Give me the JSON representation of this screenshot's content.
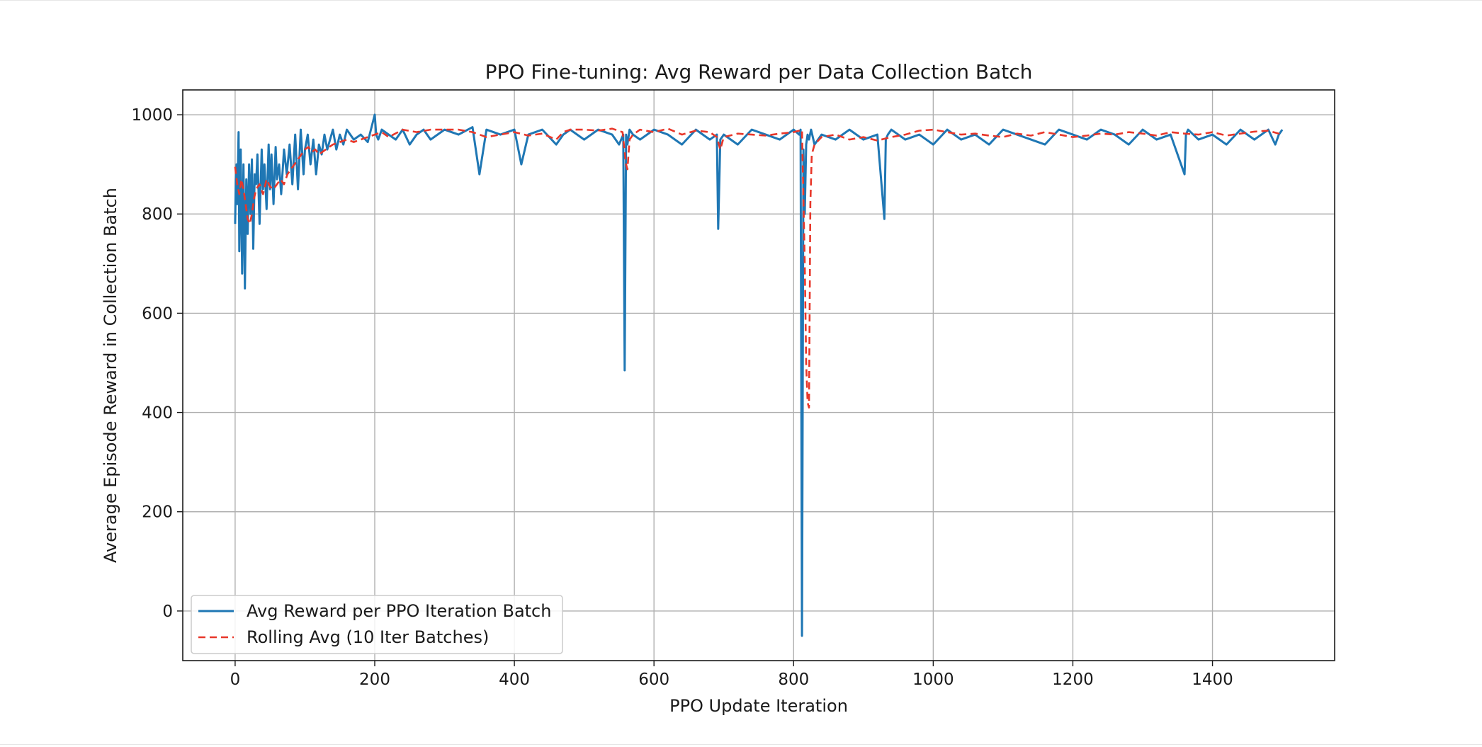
{
  "chart_data": {
    "type": "line",
    "title": "PPO Fine-tuning: Avg Reward per Data Collection Batch",
    "xlabel": "PPO Update Iteration",
    "ylabel": "Average Episode Reward in Collection Batch",
    "xlim": [
      -75,
      1575
    ],
    "ylim": [
      -100,
      1050
    ],
    "xticks": [
      0,
      200,
      400,
      600,
      800,
      1000,
      1200,
      1400
    ],
    "yticks": [
      0,
      200,
      400,
      600,
      800,
      1000
    ],
    "grid": true,
    "legend_position": "lower-left",
    "series": [
      {
        "name": "Avg Reward per PPO Iteration Batch",
        "color": "#1f77b4",
        "style": "solid",
        "x": [
          0,
          1,
          2,
          3,
          5,
          6,
          8,
          10,
          12,
          14,
          16,
          18,
          20,
          22,
          24,
          26,
          28,
          30,
          32,
          35,
          38,
          40,
          42,
          45,
          48,
          50,
          52,
          55,
          58,
          60,
          63,
          66,
          70,
          74,
          78,
          82,
          86,
          90,
          94,
          98,
          100,
          104,
          108,
          112,
          116,
          120,
          124,
          128,
          132,
          136,
          140,
          145,
          150,
          155,
          160,
          170,
          180,
          190,
          200,
          202,
          205,
          210,
          220,
          230,
          240,
          250,
          260,
          270,
          280,
          300,
          320,
          340,
          350,
          360,
          380,
          400,
          410,
          420,
          440,
          460,
          470,
          480,
          500,
          520,
          540,
          550,
          556,
          558,
          560,
          562,
          565,
          570,
          580,
          600,
          620,
          640,
          660,
          680,
          690,
          692,
          695,
          700,
          720,
          740,
          760,
          780,
          800,
          808,
          810,
          812,
          814,
          816,
          818,
          820,
          822,
          825,
          830,
          840,
          860,
          880,
          900,
          920,
          930,
          932,
          935,
          940,
          960,
          980,
          1000,
          1020,
          1040,
          1060,
          1080,
          1100,
          1120,
          1140,
          1160,
          1180,
          1200,
          1220,
          1240,
          1260,
          1280,
          1300,
          1320,
          1340,
          1360,
          1362,
          1365,
          1380,
          1400,
          1420,
          1440,
          1460,
          1480,
          1490,
          1495,
          1500
        ],
        "y": [
          780,
          870,
          900,
          820,
          965,
          725,
          930,
          680,
          900,
          650,
          870,
          760,
          900,
          800,
          910,
          730,
          880,
          860,
          920,
          780,
          930,
          850,
          900,
          810,
          940,
          850,
          920,
          820,
          935,
          870,
          900,
          840,
          930,
          880,
          940,
          860,
          960,
          850,
          970,
          880,
          930,
          960,
          900,
          950,
          880,
          940,
          920,
          960,
          930,
          950,
          970,
          930,
          960,
          940,
          970,
          950,
          960,
          945,
          1000,
          960,
          950,
          970,
          960,
          950,
          970,
          940,
          960,
          970,
          950,
          970,
          960,
          975,
          880,
          970,
          960,
          970,
          900,
          960,
          970,
          940,
          960,
          970,
          950,
          970,
          960,
          940,
          960,
          485,
          960,
          940,
          970,
          960,
          950,
          970,
          960,
          940,
          970,
          950,
          960,
          770,
          950,
          960,
          940,
          970,
          960,
          950,
          970,
          960,
          970,
          -50,
          930,
          800,
          940,
          960,
          950,
          970,
          940,
          960,
          950,
          970,
          950,
          960,
          790,
          950,
          960,
          970,
          950,
          960,
          940,
          970,
          950,
          960,
          940,
          970,
          960,
          950,
          940,
          970,
          960,
          950,
          970,
          960,
          940,
          970,
          950,
          960,
          880,
          960,
          970,
          950,
          960,
          940,
          970,
          950,
          970,
          940,
          960,
          970
        ]
      },
      {
        "name": "Rolling Avg (10 Iter Batches)",
        "color": "#e8372a",
        "style": "dashed",
        "x": [
          0,
          3,
          6,
          9,
          12,
          15,
          18,
          21,
          24,
          27,
          30,
          35,
          40,
          45,
          50,
          55,
          60,
          65,
          70,
          75,
          80,
          85,
          90,
          95,
          100,
          105,
          110,
          115,
          120,
          125,
          130,
          140,
          150,
          160,
          170,
          180,
          190,
          200,
          210,
          220,
          240,
          260,
          280,
          300,
          320,
          340,
          360,
          380,
          400,
          420,
          440,
          460,
          470,
          480,
          500,
          520,
          540,
          555,
          560,
          562,
          565,
          570,
          580,
          600,
          620,
          640,
          660,
          680,
          690,
          695,
          700,
          720,
          740,
          760,
          780,
          800,
          808,
          812,
          816,
          818,
          820,
          822,
          824,
          826,
          830,
          840,
          860,
          880,
          900,
          920,
          940,
          960,
          980,
          1000,
          1020,
          1040,
          1060,
          1080,
          1100,
          1120,
          1140,
          1160,
          1180,
          1200,
          1220,
          1240,
          1260,
          1280,
          1300,
          1320,
          1340,
          1360,
          1380,
          1400,
          1420,
          1440,
          1460,
          1480,
          1495,
          1500
        ],
        "y": [
          895,
          860,
          840,
          870,
          850,
          820,
          790,
          780,
          800,
          830,
          850,
          860,
          840,
          870,
          855,
          850,
          860,
          870,
          860,
          880,
          890,
          900,
          910,
          920,
          930,
          935,
          925,
          930,
          920,
          925,
          930,
          940,
          945,
          950,
          945,
          950,
          955,
          960,
          965,
          955,
          970,
          965,
          970,
          970,
          970,
          965,
          955,
          960,
          965,
          958,
          962,
          950,
          965,
          970,
          970,
          968,
          972,
          965,
          900,
          890,
          950,
          960,
          970,
          965,
          972,
          960,
          968,
          965,
          955,
          930,
          955,
          962,
          960,
          958,
          962,
          965,
          968,
          970,
          700,
          500,
          420,
          410,
          820,
          920,
          940,
          955,
          960,
          950,
          955,
          948,
          955,
          960,
          968,
          970,
          965,
          960,
          962,
          958,
          955,
          962,
          958,
          965,
          960,
          955,
          958,
          962,
          960,
          965,
          962,
          958,
          965,
          962,
          960,
          965,
          958,
          962,
          966,
          968,
          962,
          955
        ]
      }
    ]
  }
}
